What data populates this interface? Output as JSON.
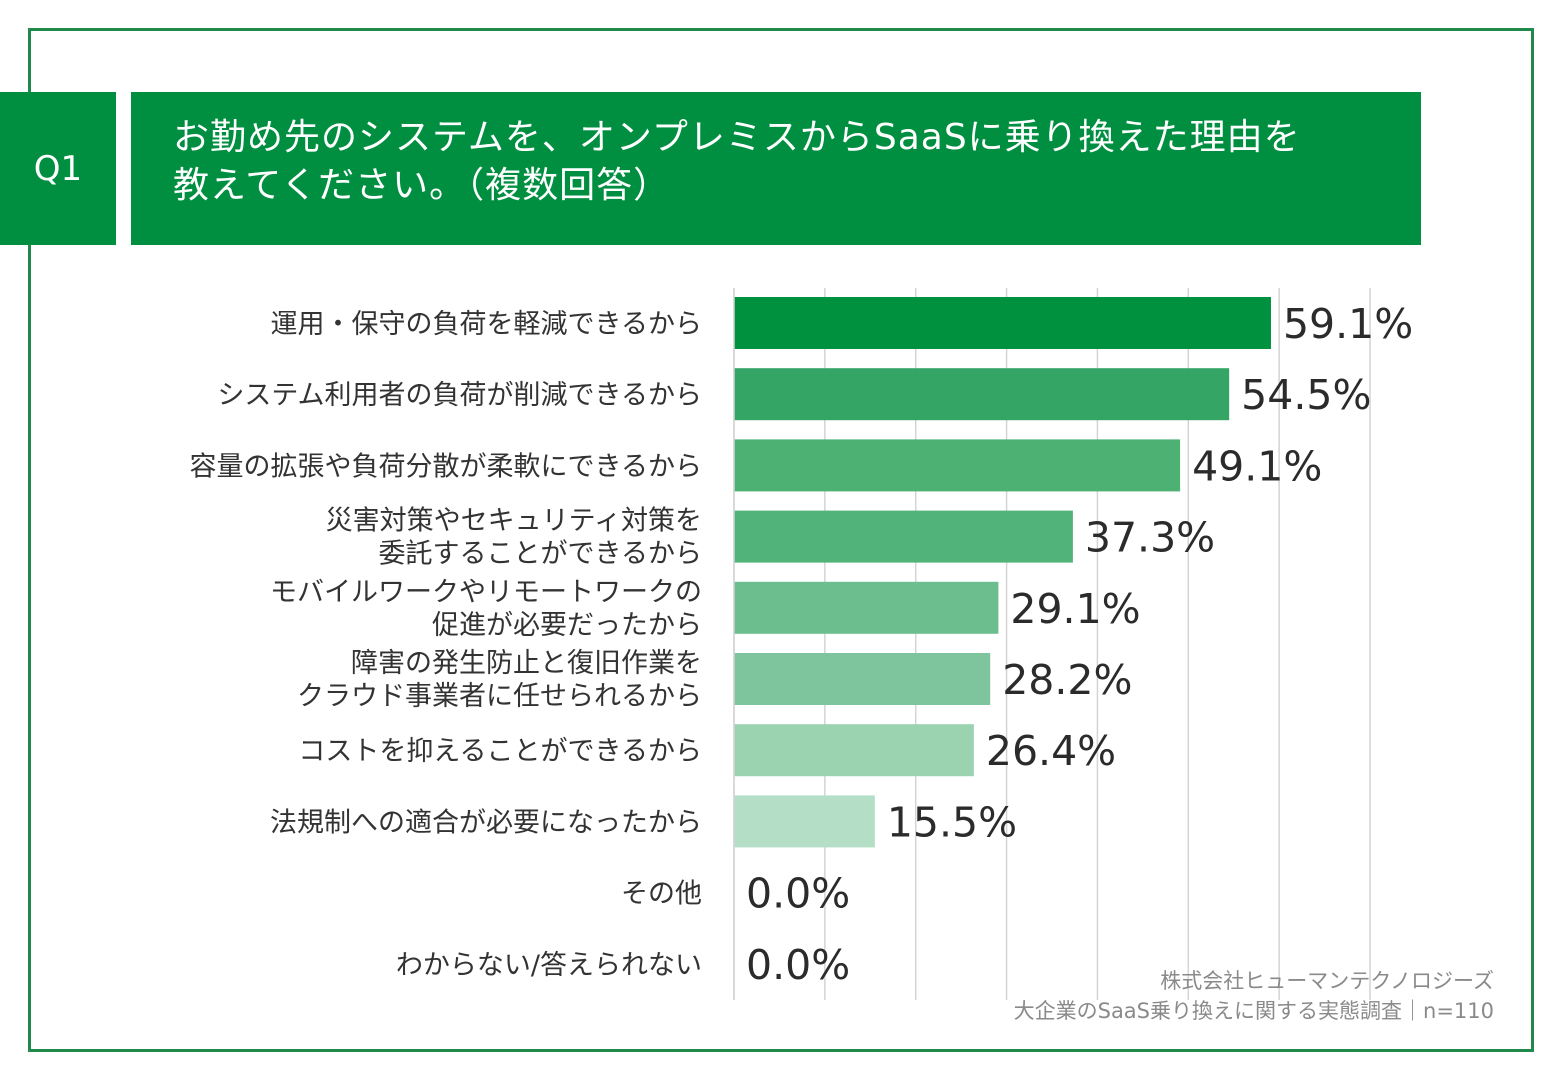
{
  "badge": "Q1",
  "title_lines": [
    "お勤め先のシステムを、オンプレミスからSaaSに乗り換えた理由を",
    "教えてください。（複数回答）"
  ],
  "colors": {
    "frame": "#1f8a4c",
    "header": "#008f40",
    "bars": [
      "#00913f",
      "#34a565",
      "#4db174",
      "#52b37a",
      "#6cbe8e",
      "#7ec59d",
      "#9bd3b1",
      "#b4dfc6",
      "#c9e8d5",
      "#c9e8d5"
    ]
  },
  "chart_data": {
    "type": "bar",
    "orientation": "horizontal",
    "categories": [
      [
        "運用・保守の負荷を軽減できるから"
      ],
      [
        "システム利用者の負荷が削減できるから"
      ],
      [
        "容量の拡張や負荷分散が柔軟にできるから"
      ],
      [
        "災害対策やセキュリティ対策を",
        "委託することができるから"
      ],
      [
        "モバイルワークやリモートワークの",
        "促進が必要だったから"
      ],
      [
        "障害の発生防止と復旧作業を",
        "クラウド事業者に任せられるから"
      ],
      [
        "コストを抑えることができるから"
      ],
      [
        "法規制への適合が必要になったから"
      ],
      [
        "その他"
      ],
      [
        "わからない/答えられない"
      ]
    ],
    "values": [
      59.1,
      54.5,
      49.1,
      37.3,
      29.1,
      28.2,
      26.4,
      15.5,
      0.0,
      0.0
    ],
    "value_labels": [
      "59.1%",
      "54.5%",
      "49.1%",
      "37.3%",
      "29.1%",
      "28.2%",
      "26.4%",
      "15.5%",
      "0.0%",
      "0.0%"
    ],
    "xlim": [
      0,
      70
    ],
    "grid": true
  },
  "source": {
    "line1": "株式会社ヒューマンテクノロジーズ",
    "line2": "大企業のSaaS乗り換えに関する実態調査｜n=110"
  }
}
